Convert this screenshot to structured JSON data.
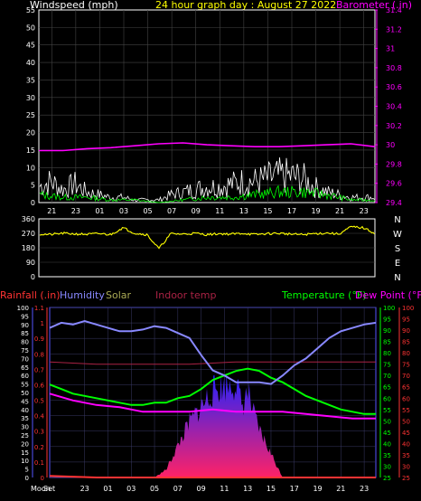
{
  "colors": {
    "wind": "#ffffff",
    "gust": "#00ff00",
    "barometer": "#ff00ff",
    "direction": "#ffff00",
    "rain": "#ff3333",
    "humidity": "#8888ff",
    "solar": "#aaaa55",
    "indoor_temp": "#aa2244",
    "temperature": "#00ff00",
    "dewpoint": "#ff00ff",
    "frame": "#ffffff",
    "title": "#ffff00",
    "axis_text": "#ffffff"
  },
  "chart_data": [
    {
      "id": "wind_baro",
      "type": "line",
      "title": "24 hour graph day : August 27 2022",
      "ylabel_left": "Windspeed (mph)",
      "ylabel_right": "Barometer (.in)",
      "ylim_left": [
        0,
        55
      ],
      "ylim_right": [
        29.4,
        31.4
      ],
      "yticks_left": [
        "0",
        "5",
        "10",
        "15",
        "20",
        "25",
        "30",
        "35",
        "40",
        "45",
        "50",
        "55"
      ],
      "yticks_right": [
        "29.4",
        "29.6",
        "29.8",
        "30",
        "30.2",
        "30.4",
        "30.6",
        "30.8",
        "31",
        "31.2",
        "31.4"
      ],
      "xticks": [
        "21",
        "23",
        "01",
        "03",
        "05",
        "07",
        "09",
        "11",
        "13",
        "15",
        "17",
        "19",
        "21",
        "23"
      ],
      "series": [
        {
          "name": "Windspeed",
          "x": [
            20,
            21,
            22,
            23,
            24,
            25,
            26,
            27,
            28,
            29,
            30,
            31,
            32,
            33,
            34,
            35,
            36,
            37,
            38,
            39,
            40,
            41,
            42,
            43,
            44,
            45,
            46,
            47,
            48
          ],
          "values": [
            6,
            8,
            5,
            7,
            4,
            3,
            2,
            2,
            1,
            1,
            1,
            3,
            4,
            5,
            6,
            6,
            7,
            8,
            8,
            9,
            10,
            10,
            9,
            6,
            4,
            3,
            2,
            2,
            2
          ]
        },
        {
          "name": "Gust",
          "x": [
            20,
            22,
            24,
            26,
            28,
            30,
            32,
            34,
            36,
            38,
            40,
            42,
            44,
            46,
            48
          ],
          "values": [
            3,
            2,
            2,
            1,
            1,
            0,
            1,
            2,
            2,
            3,
            4,
            4,
            3,
            1,
            1
          ]
        },
        {
          "name": "Barometer",
          "x": [
            20,
            22,
            24,
            26,
            28,
            30,
            32,
            34,
            36,
            38,
            40,
            42,
            44,
            46,
            48
          ],
          "values": [
            29.94,
            29.94,
            29.96,
            29.97,
            29.99,
            30.01,
            30.02,
            30.0,
            29.99,
            29.98,
            29.98,
            29.99,
            30.0,
            30.01,
            29.98
          ]
        }
      ]
    },
    {
      "id": "wind_direction",
      "type": "line",
      "ylim": [
        0,
        360
      ],
      "yticks": [
        "0",
        "90",
        "180",
        "270",
        "360"
      ],
      "direction_labels": [
        "N",
        "W",
        "S",
        "E",
        "N"
      ],
      "series": [
        {
          "name": "Wind direction",
          "x": [
            20,
            21,
            22,
            23,
            24,
            25,
            26,
            27,
            28,
            29,
            30,
            31,
            32,
            33,
            34,
            35,
            36,
            37,
            38,
            39,
            40,
            41,
            42,
            43,
            44,
            45,
            46,
            47,
            48
          ],
          "values": [
            265,
            262,
            270,
            266,
            264,
            268,
            262,
            305,
            270,
            262,
            175,
            268,
            265,
            270,
            262,
            268,
            265,
            270,
            262,
            268,
            270,
            265,
            262,
            268,
            272,
            265,
            310,
            305,
            270
          ]
        }
      ]
    },
    {
      "id": "temp_humidity",
      "type": "line",
      "legend": [
        "Rainfall (.in)",
        "Humidity",
        "Solar",
        "Indoor temp",
        "Temperature (°F)",
        "Dew Point (°F)"
      ],
      "ylim_humidity": [
        0,
        100
      ],
      "ylim_rain": [
        0,
        1.1
      ],
      "ylim_temp": [
        25,
        100
      ],
      "yticks_humidity": [
        "0",
        "5",
        "10",
        "15",
        "20",
        "25",
        "30",
        "35",
        "40",
        "45",
        "50",
        "55",
        "60",
        "65",
        "70",
        "75",
        "80",
        "85",
        "90",
        "95",
        "100"
      ],
      "yticks_rain": [
        "0",
        "0.1",
        "0.2",
        "0.3",
        "0.4",
        "0.5",
        "0.6",
        "0.7",
        "0.8",
        "0.9",
        "1",
        "1.1"
      ],
      "yticks_temp": [
        "25",
        "30",
        "35",
        "40",
        "45",
        "50",
        "55",
        "60",
        "65",
        "70",
        "75",
        "80",
        "85",
        "90",
        "95",
        "100"
      ],
      "xticks": [
        "Moon",
        "Set",
        "23",
        "01",
        "03",
        "05",
        "07",
        "09",
        "11",
        "13",
        "15",
        "17",
        "19",
        "21",
        "23"
      ],
      "series": [
        {
          "name": "Humidity",
          "x": [
            20,
            21,
            22,
            23,
            24,
            25,
            26,
            27,
            28,
            29,
            30,
            31,
            32,
            33,
            34,
            35,
            36,
            37,
            38,
            39,
            40,
            41,
            42,
            43,
            44,
            45,
            46,
            47,
            48
          ],
          "values": [
            88,
            91,
            90,
            92,
            90,
            88,
            86,
            86,
            87,
            89,
            88,
            85,
            82,
            72,
            63,
            60,
            56,
            56,
            56,
            55,
            60,
            66,
            70,
            76,
            82,
            86,
            88,
            90,
            91
          ]
        },
        {
          "name": "Temperature",
          "x": [
            20,
            21,
            22,
            23,
            24,
            25,
            26,
            27,
            28,
            29,
            30,
            31,
            32,
            33,
            34,
            35,
            36,
            37,
            38,
            39,
            40,
            41,
            42,
            43,
            44,
            45,
            46,
            47,
            48
          ],
          "values": [
            66,
            64,
            62,
            61,
            60,
            59,
            58,
            57,
            57,
            58,
            58,
            60,
            61,
            64,
            68,
            70,
            72,
            73,
            72,
            69,
            67,
            64,
            61,
            59,
            57,
            55,
            54,
            53,
            53
          ]
        },
        {
          "name": "Dew Point",
          "x": [
            20,
            22,
            24,
            26,
            28,
            30,
            32,
            34,
            36,
            38,
            40,
            42,
            44,
            46,
            48
          ],
          "values": [
            62,
            59,
            57,
            56,
            54,
            54,
            54,
            55,
            54,
            54,
            54,
            53,
            52,
            51,
            51
          ]
        },
        {
          "name": "Indoor temp",
          "x": [
            20,
            24,
            28,
            32,
            36,
            40,
            44,
            48
          ],
          "values": [
            76,
            75,
            75,
            75,
            76,
            76,
            76,
            76
          ]
        },
        {
          "name": "Solar",
          "x": [
            20,
            26,
            29,
            30,
            31,
            32,
            33,
            34,
            35,
            36,
            36.5,
            37,
            37.5,
            38,
            39,
            40,
            48
          ],
          "values": [
            0,
            0,
            0,
            5,
            20,
            35,
            45,
            55,
            58,
            60,
            45,
            55,
            40,
            30,
            15,
            0,
            0
          ]
        },
        {
          "name": "Rainfall",
          "x": [
            20,
            24,
            48
          ],
          "values": [
            0.01,
            0.0,
            0.0
          ]
        }
      ]
    }
  ]
}
